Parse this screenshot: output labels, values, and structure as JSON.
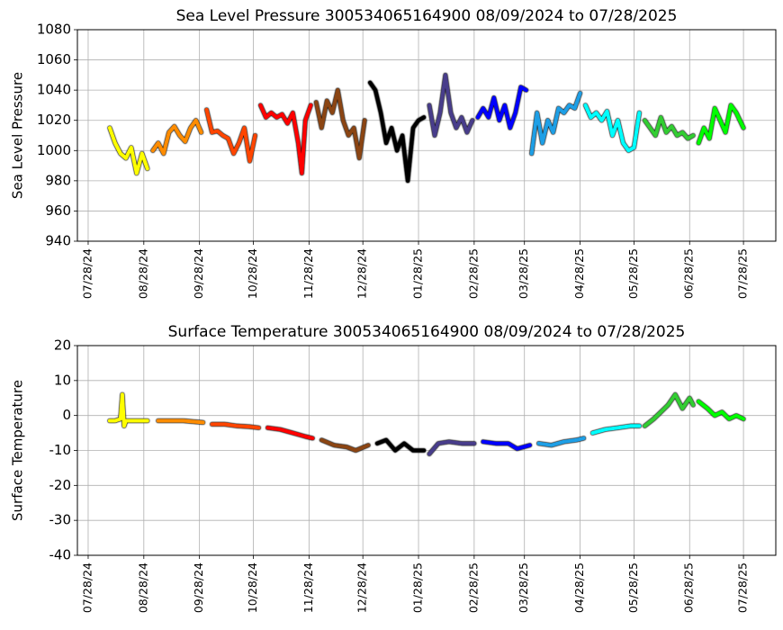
{
  "chart_data": [
    {
      "type": "line",
      "title": "Sea Level Pressure 300534065164900  08/09/2024 to 07/28/2025",
      "ylabel": "Sea Level Pressure",
      "xlim": [
        "2024-07-22",
        "2025-08-15"
      ],
      "ylim": [
        940,
        1080
      ],
      "yticks": [
        940,
        960,
        980,
        1000,
        1020,
        1040,
        1060,
        1080
      ],
      "grid": true,
      "xticks": [
        {
          "value": "2024-07-28",
          "label": "07/28/24"
        },
        {
          "value": "2024-08-28",
          "label": "08/28/24"
        },
        {
          "value": "2024-09-28",
          "label": "09/28/24"
        },
        {
          "value": "2024-10-28",
          "label": "10/28/24"
        },
        {
          "value": "2024-11-28",
          "label": "11/28/24"
        },
        {
          "value": "2024-12-28",
          "label": "12/28/24"
        },
        {
          "value": "2025-01-28",
          "label": "01/28/25"
        },
        {
          "value": "2025-02-28",
          "label": "02/28/25"
        },
        {
          "value": "2025-03-28",
          "label": "03/28/25"
        },
        {
          "value": "2025-04-28",
          "label": "04/28/25"
        },
        {
          "value": "2025-05-28",
          "label": "05/28/25"
        },
        {
          "value": "2025-06-28",
          "label": "06/28/25"
        },
        {
          "value": "2025-07-28",
          "label": "07/28/25"
        }
      ],
      "series": [
        {
          "color": "#ffff00",
          "x": [
            "2024-08-09",
            "2024-08-12",
            "2024-08-15",
            "2024-08-18",
            "2024-08-21",
            "2024-08-24",
            "2024-08-27",
            "2024-08-30"
          ],
          "values": [
            1015,
            1005,
            998,
            995,
            1002,
            985,
            998,
            988
          ]
        },
        {
          "color": "#ff8c00",
          "x": [
            "2024-09-02",
            "2024-09-05",
            "2024-09-08",
            "2024-09-11",
            "2024-09-14",
            "2024-09-17",
            "2024-09-20",
            "2024-09-23",
            "2024-09-26",
            "2024-09-29"
          ],
          "values": [
            1000,
            1005,
            998,
            1012,
            1016,
            1010,
            1006,
            1015,
            1020,
            1012
          ]
        },
        {
          "color": "#ff4500",
          "x": [
            "2024-10-02",
            "2024-10-05",
            "2024-10-08",
            "2024-10-11",
            "2024-10-14",
            "2024-10-17",
            "2024-10-20",
            "2024-10-23",
            "2024-10-26",
            "2024-10-29"
          ],
          "values": [
            1027,
            1012,
            1013,
            1010,
            1008,
            998,
            1005,
            1015,
            993,
            1010
          ]
        },
        {
          "color": "#ff0000",
          "x": [
            "2024-11-01",
            "2024-11-04",
            "2024-11-07",
            "2024-11-10",
            "2024-11-13",
            "2024-11-16",
            "2024-11-19",
            "2024-11-22",
            "2024-11-24",
            "2024-11-26",
            "2024-11-29"
          ],
          "values": [
            1030,
            1022,
            1025,
            1022,
            1024,
            1018,
            1025,
            1005,
            985,
            1020,
            1030
          ]
        },
        {
          "color": "#8b4513",
          "x": [
            "2024-12-02",
            "2024-12-05",
            "2024-12-08",
            "2024-12-11",
            "2024-12-14",
            "2024-12-17",
            "2024-12-20",
            "2024-12-23",
            "2024-12-26",
            "2024-12-29"
          ],
          "values": [
            1032,
            1015,
            1033,
            1025,
            1040,
            1020,
            1010,
            1015,
            995,
            1020
          ]
        },
        {
          "color": "#000000",
          "x": [
            "2025-01-01",
            "2025-01-04",
            "2025-01-07",
            "2025-01-10",
            "2025-01-13",
            "2025-01-16",
            "2025-01-19",
            "2025-01-22",
            "2025-01-25",
            "2025-01-28",
            "2025-01-31"
          ],
          "values": [
            1045,
            1040,
            1025,
            1005,
            1015,
            1000,
            1010,
            980,
            1015,
            1020,
            1022
          ]
        },
        {
          "color": "#483d8b",
          "x": [
            "2025-02-03",
            "2025-02-06",
            "2025-02-09",
            "2025-02-12",
            "2025-02-15",
            "2025-02-18",
            "2025-02-21",
            "2025-02-24",
            "2025-02-27"
          ],
          "values": [
            1030,
            1010,
            1025,
            1050,
            1025,
            1015,
            1022,
            1012,
            1020
          ]
        },
        {
          "color": "#0000ff",
          "x": [
            "2025-03-02",
            "2025-03-05",
            "2025-03-08",
            "2025-03-11",
            "2025-03-14",
            "2025-03-17",
            "2025-03-20",
            "2025-03-23",
            "2025-03-26",
            "2025-03-29"
          ],
          "values": [
            1022,
            1028,
            1022,
            1035,
            1020,
            1030,
            1015,
            1025,
            1042,
            1040
          ]
        },
        {
          "color": "#1e9fe6",
          "x": [
            "2025-04-01",
            "2025-04-04",
            "2025-04-07",
            "2025-04-10",
            "2025-04-13",
            "2025-04-16",
            "2025-04-19",
            "2025-04-22",
            "2025-04-25",
            "2025-04-28"
          ],
          "values": [
            998,
            1025,
            1005,
            1020,
            1012,
            1028,
            1025,
            1030,
            1028,
            1038
          ]
        },
        {
          "color": "#00ffff",
          "x": [
            "2025-05-01",
            "2025-05-04",
            "2025-05-07",
            "2025-05-10",
            "2025-05-13",
            "2025-05-16",
            "2025-05-19",
            "2025-05-22",
            "2025-05-25",
            "2025-05-28",
            "2025-05-31"
          ],
          "values": [
            1030,
            1022,
            1025,
            1020,
            1026,
            1010,
            1020,
            1005,
            1000,
            1002,
            1025
          ]
        },
        {
          "color": "#32cd32",
          "x": [
            "2025-06-03",
            "2025-06-06",
            "2025-06-09",
            "2025-06-12",
            "2025-06-15",
            "2025-06-18",
            "2025-06-21",
            "2025-06-24",
            "2025-06-27",
            "2025-06-30"
          ],
          "values": [
            1020,
            1015,
            1010,
            1022,
            1012,
            1016,
            1010,
            1012,
            1008,
            1010
          ]
        },
        {
          "color": "#00ff00",
          "x": [
            "2025-07-03",
            "2025-07-06",
            "2025-07-09",
            "2025-07-12",
            "2025-07-15",
            "2025-07-18",
            "2025-07-21",
            "2025-07-24",
            "2025-07-28"
          ],
          "values": [
            1005,
            1015,
            1008,
            1028,
            1020,
            1012,
            1030,
            1025,
            1015
          ]
        }
      ]
    },
    {
      "type": "line",
      "title": "Surface Temperature 300534065164900  08/09/2024 to 07/28/2025",
      "ylabel": "Surface Temperature",
      "xlim": [
        "2024-07-22",
        "2025-08-15"
      ],
      "ylim": [
        -40,
        20
      ],
      "yticks": [
        -40,
        -30,
        -20,
        -10,
        0,
        10,
        20
      ],
      "grid": true,
      "xticks": [
        {
          "value": "2024-07-28",
          "label": "07/28/24"
        },
        {
          "value": "2024-08-28",
          "label": "08/28/24"
        },
        {
          "value": "2024-09-28",
          "label": "09/28/24"
        },
        {
          "value": "2024-10-28",
          "label": "10/28/24"
        },
        {
          "value": "2024-11-28",
          "label": "11/28/24"
        },
        {
          "value": "2024-12-28",
          "label": "12/28/24"
        },
        {
          "value": "2025-01-28",
          "label": "01/28/25"
        },
        {
          "value": "2025-02-28",
          "label": "02/28/25"
        },
        {
          "value": "2025-03-28",
          "label": "03/28/25"
        },
        {
          "value": "2025-04-28",
          "label": "04/28/25"
        },
        {
          "value": "2025-05-28",
          "label": "05/28/25"
        },
        {
          "value": "2025-06-28",
          "label": "06/28/25"
        },
        {
          "value": "2025-07-28",
          "label": "07/28/25"
        }
      ],
      "series": [
        {
          "color": "#ffff00",
          "x": [
            "2024-08-09",
            "2024-08-12",
            "2024-08-15",
            "2024-08-16",
            "2024-08-17",
            "2024-08-18",
            "2024-08-21",
            "2024-08-25",
            "2024-08-30"
          ],
          "values": [
            -1.5,
            -1.5,
            -1,
            6,
            -3,
            -1.5,
            -1.5,
            -1.5,
            -1.5
          ]
        },
        {
          "color": "#ff8c00",
          "x": [
            "2024-09-05",
            "2024-09-12",
            "2024-09-19",
            "2024-09-26",
            "2024-09-30"
          ],
          "values": [
            -1.5,
            -1.5,
            -1.5,
            -1.8,
            -2
          ]
        },
        {
          "color": "#ff4500",
          "x": [
            "2024-10-05",
            "2024-10-12",
            "2024-10-19",
            "2024-10-26",
            "2024-10-31"
          ],
          "values": [
            -2.5,
            -2.5,
            -3,
            -3.2,
            -3.5
          ]
        },
        {
          "color": "#ff0000",
          "x": [
            "2024-11-05",
            "2024-11-12",
            "2024-11-19",
            "2024-11-26",
            "2024-11-30"
          ],
          "values": [
            -3.5,
            -4,
            -5,
            -6,
            -6.5
          ]
        },
        {
          "color": "#8b4513",
          "x": [
            "2024-12-05",
            "2024-12-12",
            "2024-12-19",
            "2024-12-24",
            "2024-12-31"
          ],
          "values": [
            -7,
            -8.5,
            -9,
            -10,
            -8.5
          ]
        },
        {
          "color": "#000000",
          "x": [
            "2025-01-05",
            "2025-01-10",
            "2025-01-15",
            "2025-01-20",
            "2025-01-25",
            "2025-01-31"
          ],
          "values": [
            -8,
            -7,
            -10,
            -8,
            -10,
            -10
          ]
        },
        {
          "color": "#483d8b",
          "x": [
            "2025-02-03",
            "2025-02-08",
            "2025-02-14",
            "2025-02-21",
            "2025-02-28"
          ],
          "values": [
            -11,
            -8,
            -7.5,
            -8,
            -8
          ]
        },
        {
          "color": "#0000ff",
          "x": [
            "2025-03-05",
            "2025-03-12",
            "2025-03-19",
            "2025-03-24",
            "2025-03-31"
          ],
          "values": [
            -7.5,
            -8,
            -8,
            -9.5,
            -8.5
          ]
        },
        {
          "color": "#1e9fe6",
          "x": [
            "2025-04-05",
            "2025-04-12",
            "2025-04-19",
            "2025-04-26",
            "2025-04-30"
          ],
          "values": [
            -8,
            -8.5,
            -7.5,
            -7,
            -6.5
          ]
        },
        {
          "color": "#00ffff",
          "x": [
            "2025-05-05",
            "2025-05-12",
            "2025-05-19",
            "2025-05-26",
            "2025-05-31"
          ],
          "values": [
            -5,
            -4,
            -3.5,
            -3,
            -3
          ]
        },
        {
          "color": "#32cd32",
          "x": [
            "2025-06-03",
            "2025-06-08",
            "2025-06-12",
            "2025-06-16",
            "2025-06-20",
            "2025-06-24",
            "2025-06-28",
            "2025-06-30"
          ],
          "values": [
            -3,
            -1,
            1,
            3,
            6,
            2,
            5,
            3
          ]
        },
        {
          "color": "#00ff00",
          "x": [
            "2025-07-03",
            "2025-07-08",
            "2025-07-12",
            "2025-07-16",
            "2025-07-20",
            "2025-07-24",
            "2025-07-28"
          ],
          "values": [
            4,
            2,
            0,
            1,
            -1,
            0,
            -1
          ]
        }
      ]
    }
  ]
}
